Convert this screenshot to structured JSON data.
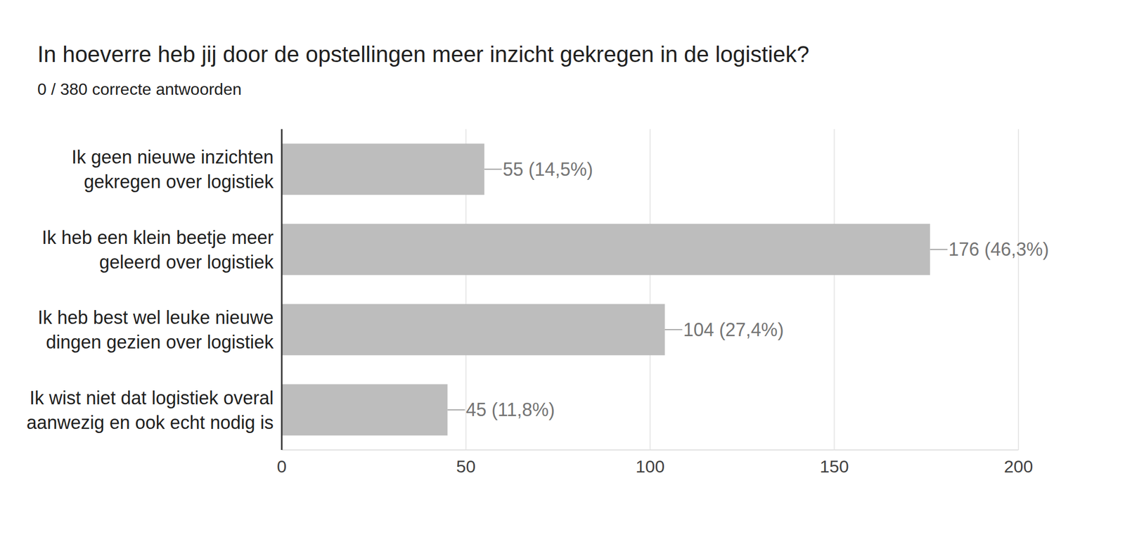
{
  "chart_data": {
    "type": "bar",
    "title": "In hoeverre heb jij door de opstellingen meer inzicht gekregen in de logistiek?",
    "subtitle": "0 / 380 correcte antwoorden",
    "categories": [
      "Ik geen nieuwe inzichten gekregen over logistiek",
      "Ik heb een klein beetje meer geleerd over logistiek",
      "Ik heb best wel leuke nieuwe dingen gezien over logistiek",
      "Ik wist niet dat logistiek overal aanwezig en ook echt nodig is"
    ],
    "values": [
      55,
      176,
      104,
      45
    ],
    "value_labels": [
      "55 (14,5%)",
      "176 (46,3%)",
      "104 (27,4%)",
      "45 (11,8%)"
    ],
    "color": "#bdbdbd",
    "orientation": "horizontal",
    "xlim": [
      0,
      200
    ],
    "xticks": [
      0,
      50,
      100,
      150,
      200
    ],
    "grid": true,
    "data_labels": true
  }
}
